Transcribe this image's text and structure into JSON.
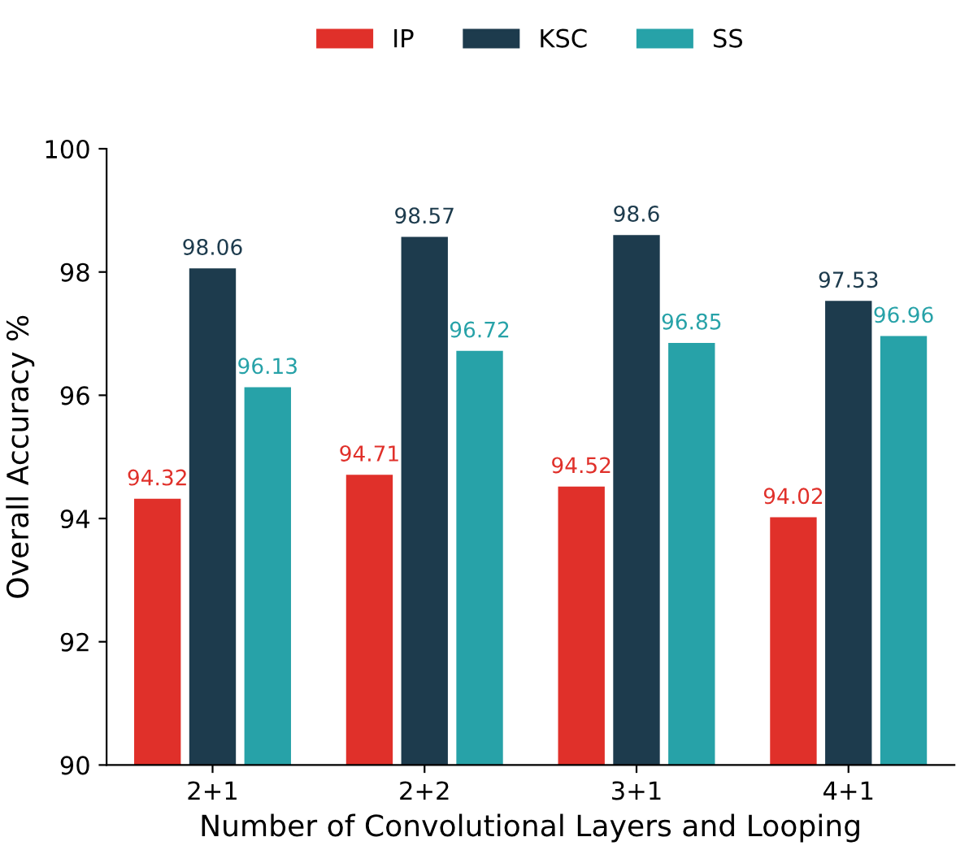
{
  "chart_data": {
    "type": "bar",
    "xlabel": "Number of Convolutional Layers and Looping",
    "ylabel": "Overall Accuracy %",
    "categories": [
      "2+1",
      "2+2",
      "3+1",
      "4+1"
    ],
    "series": [
      {
        "name": "IP",
        "color": "#e0302a",
        "values": [
          94.32,
          94.71,
          94.52,
          94.02
        ]
      },
      {
        "name": "KSC",
        "color": "#1d3b4d",
        "values": [
          98.06,
          98.57,
          98.6,
          97.53
        ]
      },
      {
        "name": "SS",
        "color": "#27a2a8",
        "values": [
          96.13,
          96.72,
          96.85,
          96.96
        ]
      }
    ],
    "ylim": [
      90,
      100
    ],
    "yticks": [
      90,
      92,
      94,
      96,
      98,
      100
    ],
    "data_labels": true,
    "legend": "top",
    "grid": false
  }
}
